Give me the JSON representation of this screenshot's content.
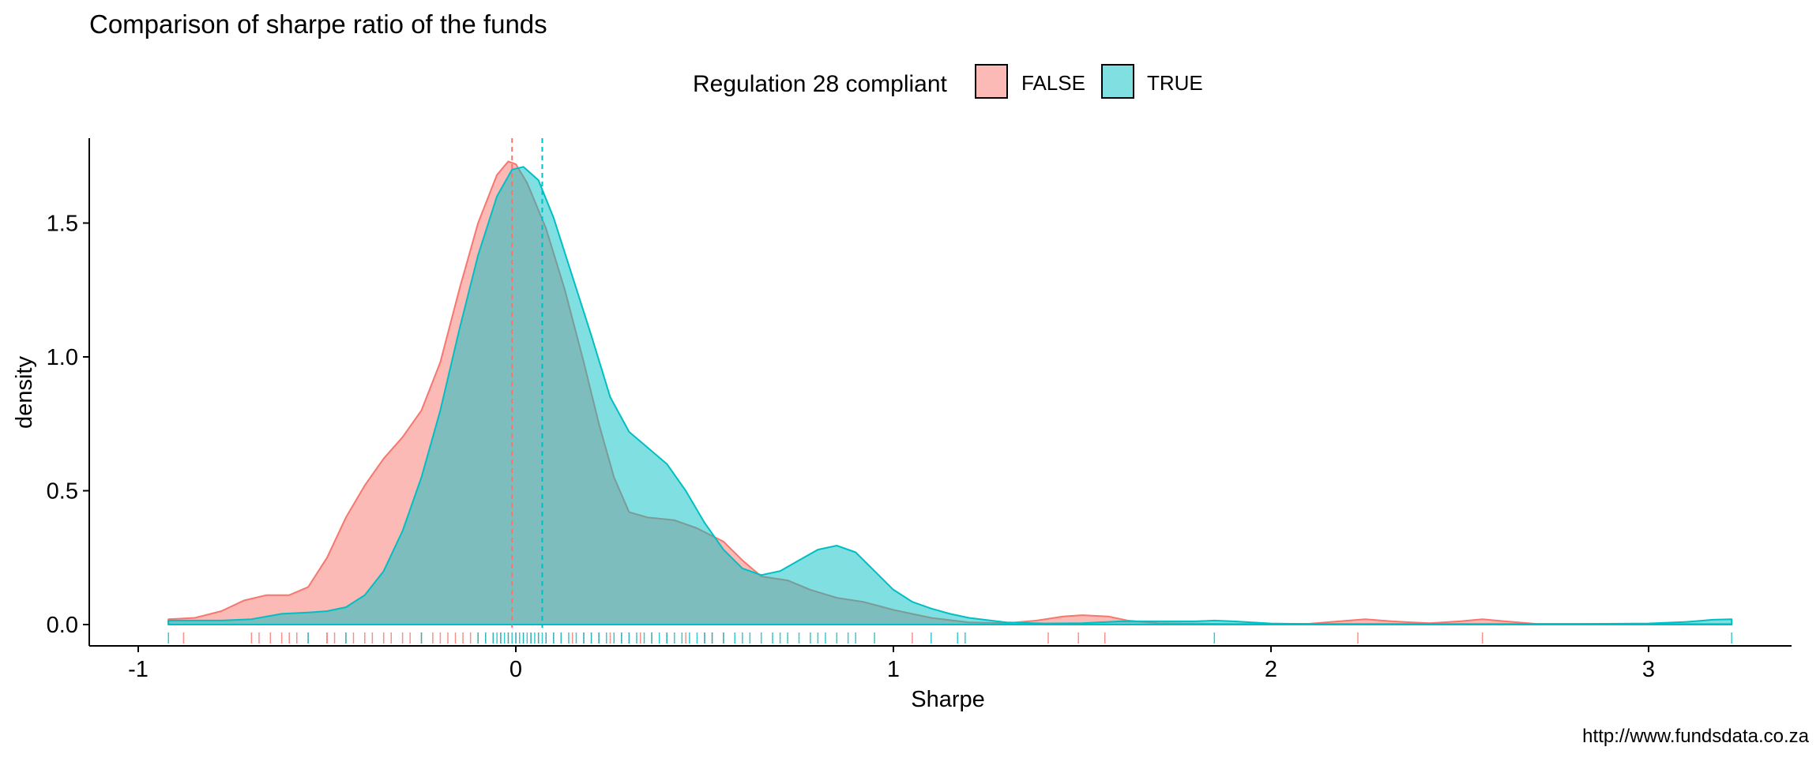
{
  "chart_data": {
    "type": "density",
    "title": "Comparison of sharpe ratio of the funds",
    "xlabel": "Sharpe",
    "ylabel": "density",
    "caption": "http://www.fundsdata.co.za",
    "xlim": [
      -1.0,
      3.35
    ],
    "ylim": [
      0,
      1.8
    ],
    "x_ticks": [
      -1,
      0,
      1,
      2,
      3
    ],
    "x_tick_labels": [
      "-1",
      "0",
      "1",
      "2",
      "3"
    ],
    "y_ticks": [
      0.0,
      0.5,
      1.0,
      1.5
    ],
    "y_tick_labels": [
      "0.0",
      "0.5",
      "1.0",
      "1.5"
    ],
    "legend": {
      "title": "Regulation 28 compliant",
      "position": "top",
      "items": [
        {
          "label": "FALSE",
          "fill": "#F8766D",
          "line": "#F8766D"
        },
        {
          "label": "TRUE",
          "fill": "#00BFC4",
          "line": "#00BFC4"
        }
      ]
    },
    "series": [
      {
        "name": "FALSE",
        "mean_line": -0.01,
        "points": [
          [
            -0.92,
            0.02
          ],
          [
            -0.85,
            0.025
          ],
          [
            -0.78,
            0.05
          ],
          [
            -0.72,
            0.09
          ],
          [
            -0.66,
            0.11
          ],
          [
            -0.6,
            0.11
          ],
          [
            -0.55,
            0.14
          ],
          [
            -0.5,
            0.25
          ],
          [
            -0.45,
            0.4
          ],
          [
            -0.4,
            0.52
          ],
          [
            -0.35,
            0.62
          ],
          [
            -0.3,
            0.7
          ],
          [
            -0.25,
            0.8
          ],
          [
            -0.2,
            0.98
          ],
          [
            -0.15,
            1.25
          ],
          [
            -0.1,
            1.5
          ],
          [
            -0.05,
            1.68
          ],
          [
            -0.02,
            1.73
          ],
          [
            0.0,
            1.72
          ],
          [
            0.03,
            1.65
          ],
          [
            0.08,
            1.48
          ],
          [
            0.13,
            1.25
          ],
          [
            0.18,
            0.98
          ],
          [
            0.22,
            0.75
          ],
          [
            0.26,
            0.55
          ],
          [
            0.3,
            0.42
          ],
          [
            0.35,
            0.4
          ],
          [
            0.42,
            0.39
          ],
          [
            0.48,
            0.36
          ],
          [
            0.55,
            0.31
          ],
          [
            0.6,
            0.24
          ],
          [
            0.65,
            0.18
          ],
          [
            0.72,
            0.165
          ],
          [
            0.78,
            0.13
          ],
          [
            0.85,
            0.1
          ],
          [
            0.92,
            0.085
          ],
          [
            1.0,
            0.055
          ],
          [
            1.1,
            0.025
          ],
          [
            1.2,
            0.008
          ],
          [
            1.3,
            0.005
          ],
          [
            1.38,
            0.015
          ],
          [
            1.45,
            0.03
          ],
          [
            1.5,
            0.035
          ],
          [
            1.57,
            0.03
          ],
          [
            1.62,
            0.015
          ],
          [
            1.7,
            0.005
          ],
          [
            1.9,
            0.002
          ],
          [
            2.1,
            0.003
          ],
          [
            2.18,
            0.012
          ],
          [
            2.25,
            0.02
          ],
          [
            2.32,
            0.012
          ],
          [
            2.42,
            0.005
          ],
          [
            2.5,
            0.012
          ],
          [
            2.56,
            0.02
          ],
          [
            2.62,
            0.012
          ],
          [
            2.7,
            0.003
          ],
          [
            3.0,
            0.002
          ],
          [
            3.22,
            0.002
          ]
        ],
        "rug": [
          -0.88,
          -0.7,
          -0.68,
          -0.65,
          -0.62,
          -0.6,
          -0.58,
          -0.55,
          -0.5,
          -0.5,
          -0.48,
          -0.45,
          -0.43,
          -0.4,
          -0.38,
          -0.35,
          -0.33,
          -0.3,
          -0.28,
          -0.25,
          -0.22,
          -0.2,
          -0.18,
          -0.16,
          -0.14,
          -0.12,
          -0.1,
          -0.08,
          -0.06,
          -0.04,
          -0.02,
          0.0,
          0.02,
          0.04,
          0.06,
          0.08,
          0.1,
          0.12,
          0.15,
          0.18,
          0.2,
          0.22,
          0.25,
          0.28,
          0.3,
          0.33,
          0.36,
          0.4,
          0.45,
          0.5,
          0.52,
          0.55,
          1.05,
          1.41,
          1.49,
          1.56,
          2.23,
          2.56
        ]
      },
      {
        "name": "TRUE",
        "mean_line": 0.07,
        "points": [
          [
            -0.92,
            0.015
          ],
          [
            -0.85,
            0.015
          ],
          [
            -0.78,
            0.015
          ],
          [
            -0.7,
            0.02
          ],
          [
            -0.62,
            0.04
          ],
          [
            -0.55,
            0.045
          ],
          [
            -0.5,
            0.05
          ],
          [
            -0.45,
            0.065
          ],
          [
            -0.4,
            0.11
          ],
          [
            -0.35,
            0.2
          ],
          [
            -0.3,
            0.35
          ],
          [
            -0.25,
            0.55
          ],
          [
            -0.2,
            0.8
          ],
          [
            -0.15,
            1.1
          ],
          [
            -0.1,
            1.38
          ],
          [
            -0.05,
            1.6
          ],
          [
            -0.01,
            1.7
          ],
          [
            0.02,
            1.71
          ],
          [
            0.06,
            1.66
          ],
          [
            0.1,
            1.52
          ],
          [
            0.15,
            1.3
          ],
          [
            0.2,
            1.08
          ],
          [
            0.25,
            0.85
          ],
          [
            0.3,
            0.72
          ],
          [
            0.35,
            0.66
          ],
          [
            0.4,
            0.6
          ],
          [
            0.45,
            0.5
          ],
          [
            0.5,
            0.38
          ],
          [
            0.55,
            0.28
          ],
          [
            0.6,
            0.21
          ],
          [
            0.65,
            0.185
          ],
          [
            0.7,
            0.2
          ],
          [
            0.75,
            0.24
          ],
          [
            0.8,
            0.28
          ],
          [
            0.85,
            0.295
          ],
          [
            0.9,
            0.27
          ],
          [
            0.95,
            0.2
          ],
          [
            1.0,
            0.13
          ],
          [
            1.05,
            0.085
          ],
          [
            1.1,
            0.06
          ],
          [
            1.15,
            0.04
          ],
          [
            1.2,
            0.025
          ],
          [
            1.3,
            0.008
          ],
          [
            1.4,
            0.004
          ],
          [
            1.5,
            0.005
          ],
          [
            1.6,
            0.012
          ],
          [
            1.7,
            0.012
          ],
          [
            1.8,
            0.012
          ],
          [
            1.85,
            0.015
          ],
          [
            1.9,
            0.012
          ],
          [
            2.0,
            0.004
          ],
          [
            2.1,
            0.002
          ],
          [
            2.5,
            0.002
          ],
          [
            2.8,
            0.002
          ],
          [
            3.0,
            0.004
          ],
          [
            3.1,
            0.01
          ],
          [
            3.17,
            0.018
          ],
          [
            3.22,
            0.02
          ]
        ],
        "rug": [
          -0.92,
          -0.55,
          -0.45,
          -0.25,
          -0.1,
          -0.08,
          -0.06,
          -0.05,
          -0.04,
          -0.03,
          -0.02,
          -0.01,
          0.0,
          0.01,
          0.02,
          0.03,
          0.04,
          0.05,
          0.06,
          0.07,
          0.08,
          0.1,
          0.12,
          0.14,
          0.16,
          0.18,
          0.2,
          0.22,
          0.24,
          0.26,
          0.28,
          0.3,
          0.32,
          0.34,
          0.36,
          0.38,
          0.4,
          0.42,
          0.44,
          0.46,
          0.48,
          0.5,
          0.52,
          0.55,
          0.58,
          0.6,
          0.62,
          0.65,
          0.68,
          0.7,
          0.72,
          0.75,
          0.78,
          0.8,
          0.82,
          0.85,
          0.88,
          0.9,
          0.95,
          1.1,
          1.17,
          1.19,
          1.85,
          3.22
        ]
      }
    ]
  }
}
